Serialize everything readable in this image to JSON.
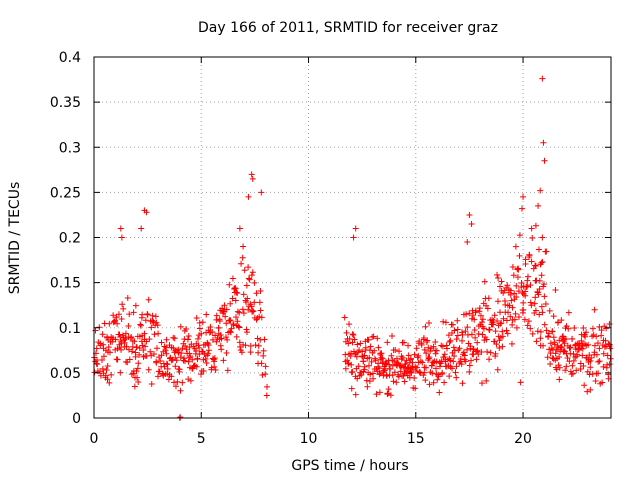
{
  "chart_data": {
    "type": "scatter",
    "title": "Day 166 of 2011, SRMTID for receiver graz",
    "xlabel": "GPS time / hours",
    "ylabel": "SRMTID / TECUs",
    "xlim": [
      0,
      24.1
    ],
    "ylim": [
      0,
      0.4
    ],
    "xticks": [
      0,
      5,
      10,
      15,
      20
    ],
    "yticks": [
      0,
      0.05,
      0.1,
      0.15,
      0.2,
      0.25,
      0.3,
      0.35,
      0.4
    ],
    "grid": true,
    "marker": "plus",
    "color": "#ff0000",
    "segments": [
      {
        "start": 0.0,
        "end": 8.1,
        "step": 0.03,
        "profile": [
          [
            0.0,
            0.075
          ],
          [
            0.4,
            0.07
          ],
          [
            1.0,
            0.075
          ],
          [
            1.3,
            0.09
          ],
          [
            1.8,
            0.075
          ],
          [
            2.3,
            0.09
          ],
          [
            2.7,
            0.11
          ],
          [
            3.1,
            0.065
          ],
          [
            3.6,
            0.06
          ],
          [
            4.2,
            0.07
          ],
          [
            5.0,
            0.075
          ],
          [
            5.8,
            0.09
          ],
          [
            6.6,
            0.11
          ],
          [
            7.3,
            0.13
          ],
          [
            7.8,
            0.09
          ],
          [
            8.1,
            0.02
          ]
        ]
      },
      {
        "start": 11.7,
        "end": 24.1,
        "step": 0.028,
        "profile": [
          [
            11.7,
            0.08
          ],
          [
            12.5,
            0.065
          ],
          [
            13.5,
            0.06
          ],
          [
            14.5,
            0.055
          ],
          [
            15.5,
            0.065
          ],
          [
            16.5,
            0.075
          ],
          [
            17.5,
            0.085
          ],
          [
            18.5,
            0.1
          ],
          [
            19.5,
            0.12
          ],
          [
            20.3,
            0.135
          ],
          [
            21.0,
            0.125
          ],
          [
            21.6,
            0.08
          ],
          [
            22.5,
            0.07
          ],
          [
            23.5,
            0.075
          ],
          [
            24.1,
            0.08
          ]
        ]
      }
    ],
    "highlights": [
      {
        "x": 7.35,
        "y": 0.27
      },
      {
        "x": 7.4,
        "y": 0.265
      },
      {
        "x": 7.2,
        "y": 0.245
      },
      {
        "x": 7.8,
        "y": 0.25
      },
      {
        "x": 2.35,
        "y": 0.23
      },
      {
        "x": 2.45,
        "y": 0.228
      },
      {
        "x": 2.2,
        "y": 0.21
      },
      {
        "x": 1.25,
        "y": 0.21
      },
      {
        "x": 1.3,
        "y": 0.2
      },
      {
        "x": 6.8,
        "y": 0.21
      },
      {
        "x": 6.95,
        "y": 0.19
      },
      {
        "x": 12.2,
        "y": 0.21
      },
      {
        "x": 12.1,
        "y": 0.2
      },
      {
        "x": 17.5,
        "y": 0.225
      },
      {
        "x": 17.6,
        "y": 0.215
      },
      {
        "x": 17.4,
        "y": 0.195
      },
      {
        "x": 20.9,
        "y": 0.376
      },
      {
        "x": 20.95,
        "y": 0.305
      },
      {
        "x": 21.0,
        "y": 0.285
      },
      {
        "x": 20.8,
        "y": 0.252
      },
      {
        "x": 20.0,
        "y": 0.245
      },
      {
        "x": 19.95,
        "y": 0.232
      },
      {
        "x": 20.7,
        "y": 0.235
      },
      {
        "x": 20.6,
        "y": 0.213
      },
      {
        "x": 20.4,
        "y": 0.21
      },
      {
        "x": 20.9,
        "y": 0.2
      },
      {
        "x": 4.0,
        "y": 0.0
      },
      {
        "x": 4.02,
        "y": 0.001
      }
    ]
  }
}
